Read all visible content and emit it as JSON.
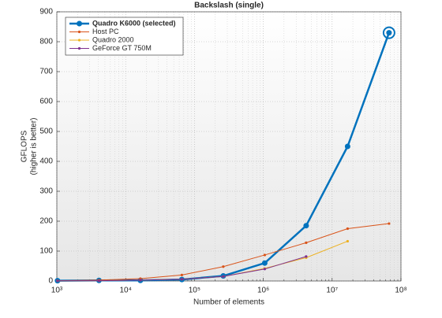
{
  "chart_data": {
    "type": "line",
    "title": "Backslash (single)",
    "x_label": "Number of elements",
    "y_label": [
      "GFLOPS",
      "(higher is better)"
    ],
    "x": [
      1024,
      4096,
      16384,
      65536,
      262144,
      1048576,
      4194304,
      16777216,
      67108864
    ],
    "series": [
      {
        "name": "Quadro K6000 (selected)",
        "color": "#0072bd",
        "line_width": 2.5,
        "values": [
          1,
          2,
          2,
          5,
          17,
          60,
          185,
          450,
          830
        ]
      },
      {
        "name": "Host PC",
        "color": "#d95319",
        "line_width": 1,
        "values": [
          1,
          3,
          8,
          20,
          48,
          87,
          128,
          175,
          192
        ]
      },
      {
        "name": "Quadro 2000",
        "color": "#edb120",
        "line_width": 1,
        "values": [
          0.5,
          1,
          3,
          6,
          15,
          42,
          78,
          133,
          null
        ]
      },
      {
        "name": "GeForce GT 750M",
        "color": "#7e2f8e",
        "line_width": 1,
        "values": [
          0.5,
          1,
          3,
          6,
          15,
          40,
          82,
          null,
          null
        ]
      }
    ],
    "xscale": "log",
    "xlim": [
      1000,
      100000000
    ],
    "xticks": [
      {
        "value": 1000,
        "label": "10³"
      },
      {
        "value": 10000,
        "label": "10⁴"
      },
      {
        "value": 100000,
        "label": "10⁵"
      },
      {
        "value": 1000000,
        "label": "10⁶"
      },
      {
        "value": 10000000,
        "label": "10⁷"
      },
      {
        "value": 100000000,
        "label": "10⁸"
      }
    ],
    "ylim": [
      0,
      900
    ],
    "yticks": [
      0,
      100,
      200,
      300,
      400,
      500,
      600,
      700,
      800,
      900
    ],
    "grid": true,
    "legend": "top-left"
  }
}
